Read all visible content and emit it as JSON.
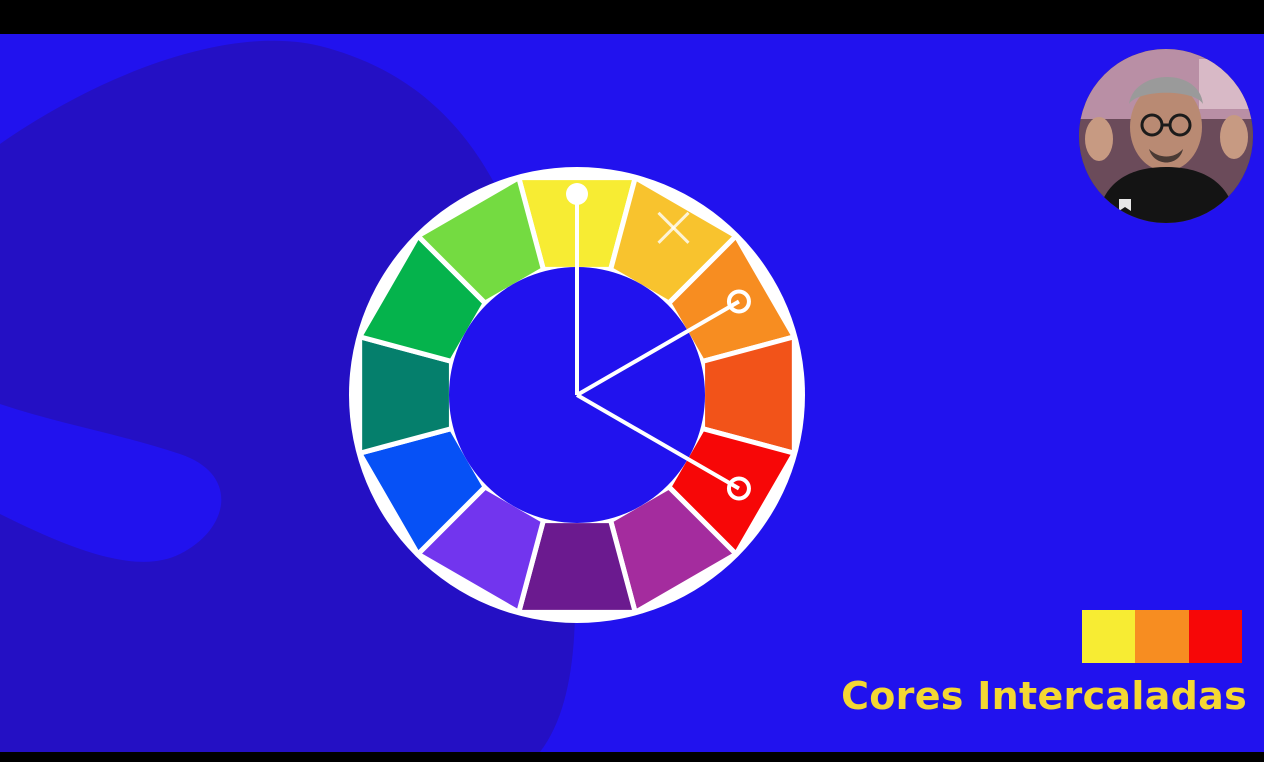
{
  "caption": "Cores Intercaladas",
  "wheel": {
    "segments": [
      {
        "name": "yellow",
        "color": "#f7ec33"
      },
      {
        "name": "yellow-orange",
        "color": "#f8c32e"
      },
      {
        "name": "orange",
        "color": "#f78d21"
      },
      {
        "name": "red-orange",
        "color": "#f25319"
      },
      {
        "name": "red",
        "color": "#f70707"
      },
      {
        "name": "red-violet",
        "color": "#a42c9e"
      },
      {
        "name": "violet",
        "color": "#6b1a8f"
      },
      {
        "name": "blue-violet",
        "color": "#7235ee"
      },
      {
        "name": "blue",
        "color": "#0651f6"
      },
      {
        "name": "blue-green",
        "color": "#057f6c"
      },
      {
        "name": "green",
        "color": "#05b34c"
      },
      {
        "name": "yellow-green",
        "color": "#74db41"
      }
    ],
    "pointers": [
      {
        "target": "yellow",
        "marker": "dot"
      },
      {
        "target": "orange",
        "marker": "ring"
      },
      {
        "target": "red",
        "marker": "ring"
      }
    ],
    "excluded": {
      "target": "yellow-orange",
      "marker": "x-icon"
    }
  },
  "swatches": [
    {
      "name": "yellow",
      "color": "#f7ec33"
    },
    {
      "name": "orange",
      "color": "#f78d21"
    },
    {
      "name": "red",
      "color": "#f70707"
    }
  ],
  "colors": {
    "background": "#2112ee",
    "background_shape": "#2410c4",
    "caption": "#f4d733",
    "wheel_stroke": "#ffffff"
  }
}
